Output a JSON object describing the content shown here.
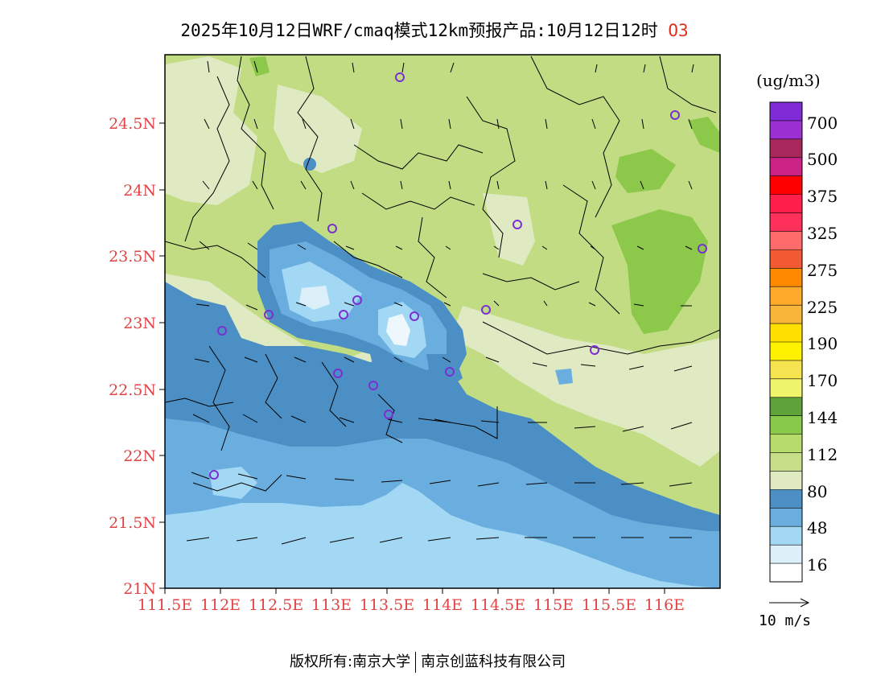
{
  "title": {
    "text": "2025年10月12日WRF/cmaq模式12km预报产品:10月12日12时",
    "species": "O3"
  },
  "axes": {
    "lat_labels": [
      "24.5N",
      "24N",
      "23.5N",
      "23N",
      "22.5N",
      "22N",
      "21.5N",
      "21N"
    ],
    "lon_labels": [
      "111.5E",
      "112E",
      "112.5E",
      "113E",
      "113.5E",
      "114E",
      "114.5E",
      "115E",
      "115.5E",
      "116E"
    ]
  },
  "legend": {
    "unit": "(ug/m3)",
    "labels": [
      "700",
      "500",
      "375",
      "325",
      "275",
      "225",
      "190",
      "170",
      "144",
      "112",
      "80",
      "48",
      "16"
    ],
    "colors": [
      "#7f2bd6",
      "#9b2fd2",
      "#a8285c",
      "#cc2286",
      "#ff0000",
      "#ff1f4a",
      "#ff305a",
      "#ff6a6a",
      "#f25a33",
      "#ff8a00",
      "#ffaa2a",
      "#f7b53a",
      "#ffe000",
      "#fff200",
      "#f5e350",
      "#eef56a",
      "#5ea23a",
      "#88c84a",
      "#b7dc6c",
      "#c7df88",
      "#dfeac2",
      "#4b8fc4",
      "#6aaee0",
      "#a3d8f5",
      "#dbeff9",
      "#ffffff"
    ]
  },
  "wind_reference": {
    "label": "10 m/s"
  },
  "stations_count": 17,
  "footer": {
    "copyright": "版权所有:南京大学",
    "company": "南京创蓝科技有限公司"
  }
}
